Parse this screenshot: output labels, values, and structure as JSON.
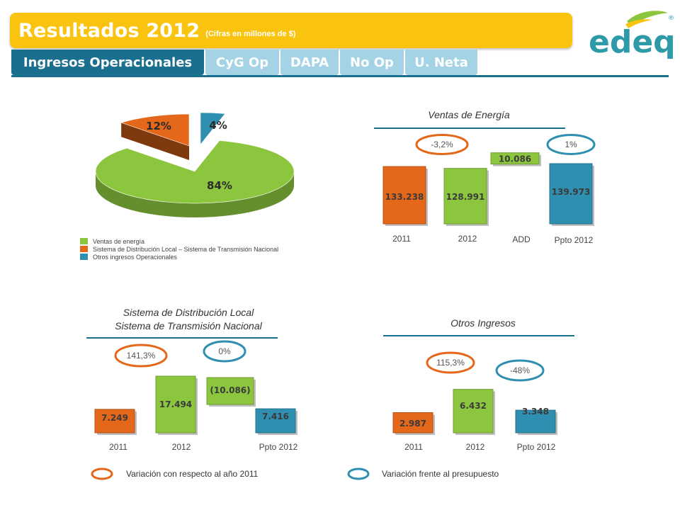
{
  "header": {
    "title": "Resultados 2012",
    "subtitle": "(Cifras en millones de $)",
    "logo_text": "edeq",
    "logo_mark": "®"
  },
  "tabs": [
    {
      "label": "Ingresos Operacionales",
      "active": true
    },
    {
      "label": "CyG Op",
      "active": false
    },
    {
      "label": "DAPA",
      "active": false
    },
    {
      "label": "No Op",
      "active": false
    },
    {
      "label": "U. Neta",
      "active": false
    }
  ],
  "colors": {
    "orange": "#e5671a",
    "green": "#8cc63f",
    "blue": "#2e8fb0",
    "gold": "#f9c30f",
    "teal": "#1a6f8e"
  },
  "legend": {
    "variacion_2011": "Variación con respecto al año 2011",
    "variacion_ppto": "Variación frente al presupuesto"
  },
  "chart_data": [
    {
      "type": "pie",
      "title": "",
      "slices": [
        {
          "label": "Ventas de energía",
          "value": 84,
          "display": "84%",
          "color": "#8cc63f"
        },
        {
          "label": "Sistema de Distribución Local – Sistema de Transmisión Nacional",
          "value": 12,
          "display": "12%",
          "color": "#e5671a"
        },
        {
          "label": "Otros ingresos Operacionales",
          "value": 4,
          "display": "4%",
          "color": "#2e8fb0"
        }
      ],
      "legend_position": "bottom-left"
    },
    {
      "type": "bar",
      "title": "Ventas de Energía",
      "categories": [
        "2011",
        "2012",
        "ADD",
        "Ppto 2012"
      ],
      "values": [
        133238,
        128991,
        10086,
        139973
      ],
      "labels": [
        "133.238",
        "128.991",
        "10.086",
        "139.973"
      ],
      "colors": [
        "#e5671a",
        "#8cc63f",
        "#8cc63f",
        "#2e8fb0"
      ],
      "waterfall_add_index": 2,
      "variations": [
        {
          "label": "-3,2%",
          "type": "vs_2011"
        },
        {
          "label": "1%",
          "type": "vs_ppto"
        }
      ]
    },
    {
      "type": "bar",
      "title": "Sistema de Distribución Local",
      "subtitle": "Sistema de Transmisión Nacional",
      "categories": [
        "2011",
        "2012",
        "",
        "Ppto 2012"
      ],
      "values": [
        7249,
        17494,
        -10086,
        7416
      ],
      "labels": [
        "7.249",
        "17.494",
        "(10.086)",
        "7.416"
      ],
      "colors": [
        "#e5671a",
        "#8cc63f",
        "#8cc63f",
        "#2e8fb0"
      ],
      "waterfall_sub_index": 2,
      "variations": [
        {
          "label": "141,3%",
          "type": "vs_2011"
        },
        {
          "label": "0%",
          "type": "vs_ppto"
        }
      ]
    },
    {
      "type": "bar",
      "title": "Otros Ingresos",
      "categories": [
        "2011",
        "2012",
        "Ppto 2012"
      ],
      "values": [
        2987,
        6432,
        3348
      ],
      "labels": [
        "2.987",
        "6.432",
        "3.348"
      ],
      "colors": [
        "#e5671a",
        "#8cc63f",
        "#2e8fb0"
      ],
      "variations": [
        {
          "label": "115,3%",
          "type": "vs_2011"
        },
        {
          "label": "-48%",
          "type": "vs_ppto"
        }
      ]
    }
  ]
}
